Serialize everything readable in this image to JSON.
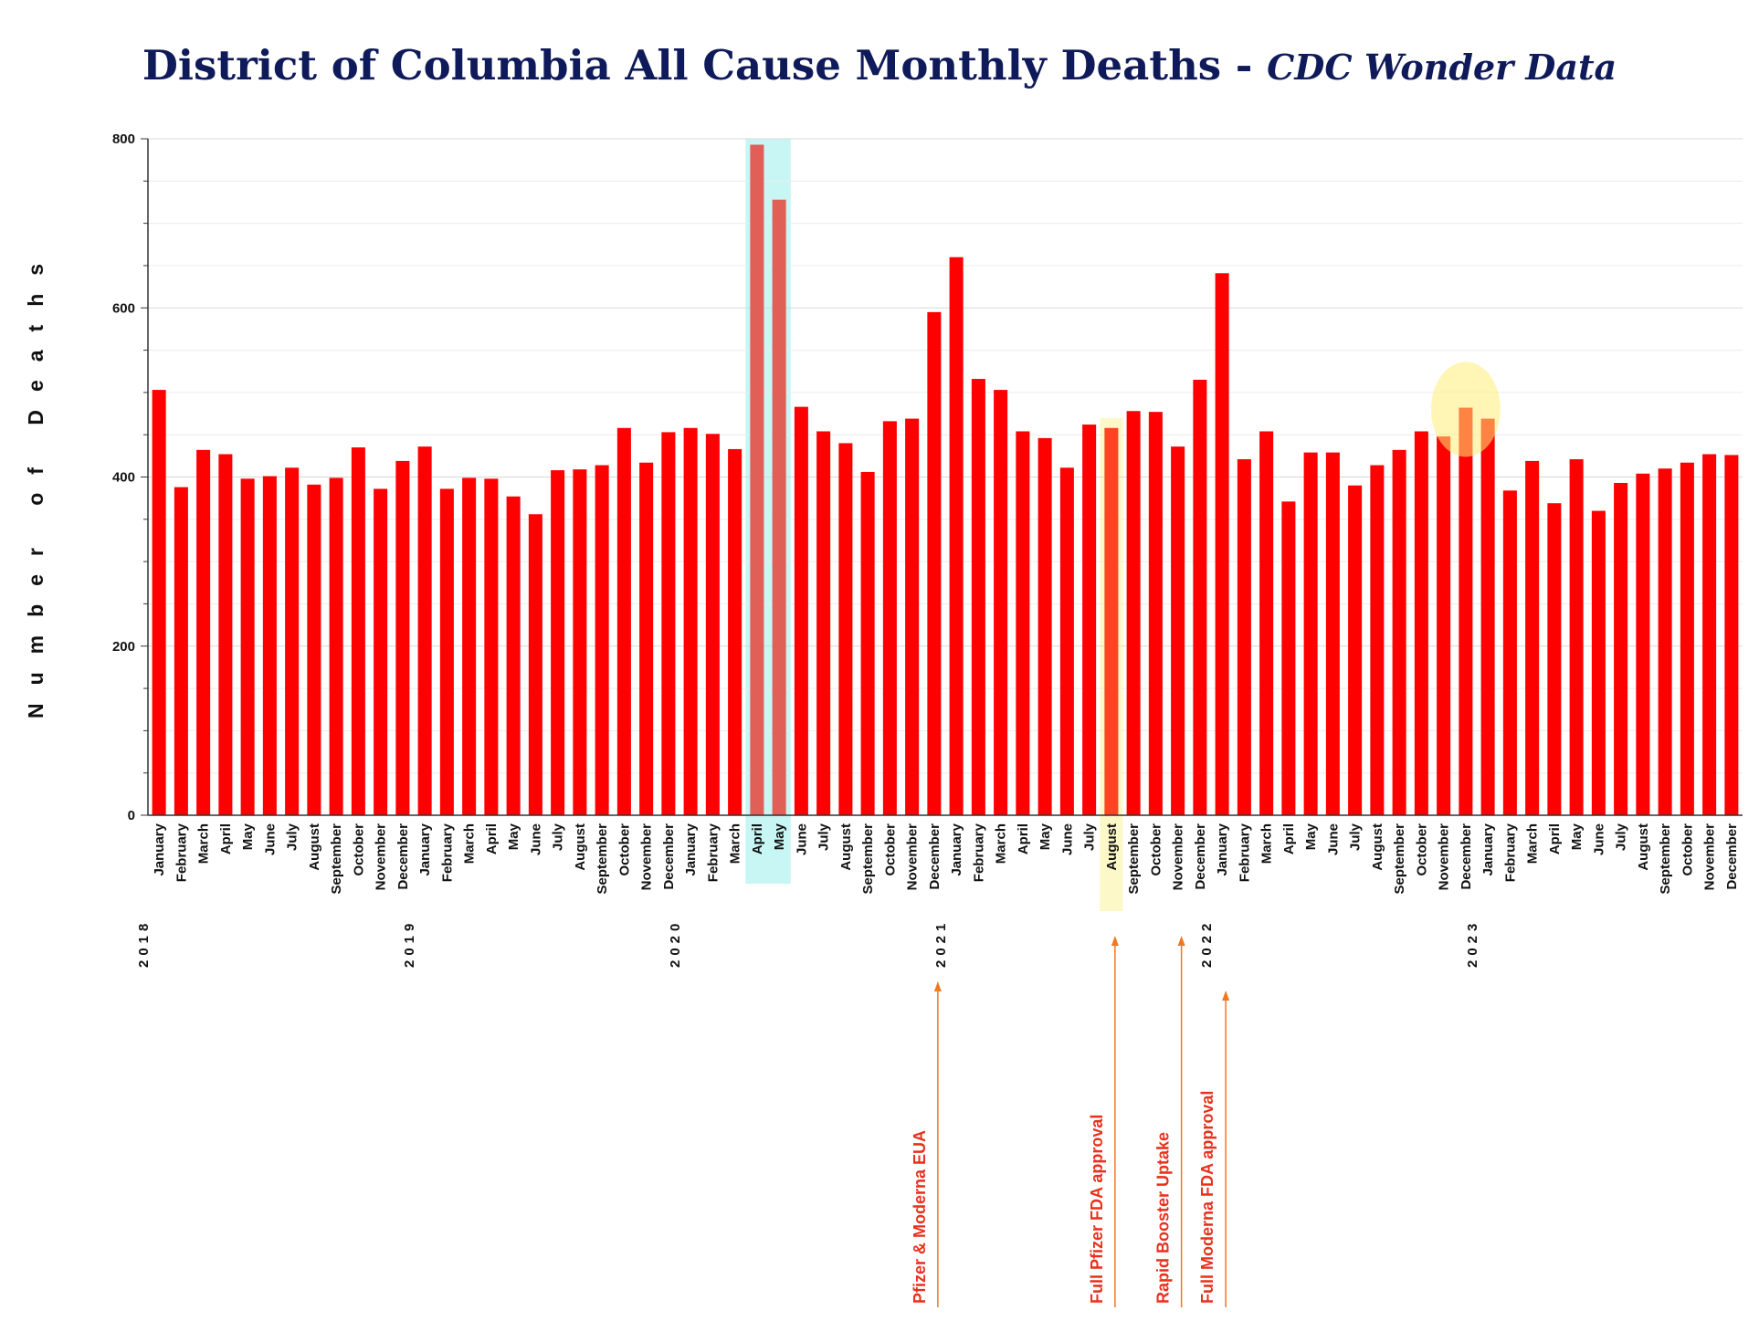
{
  "title": {
    "main": "District of Columbia All Cause Monthly Deaths - ",
    "sub": "CDC Wonder Data"
  },
  "colors": {
    "bar": "#ff0000",
    "bar_highlight": "#e06058",
    "cyan_band": "#c8f6f4",
    "arrow": "#f07820",
    "annotation": "#e8301c",
    "title": "#0f1a5a"
  },
  "chart_data": {
    "type": "bar",
    "title": "District of Columbia All Cause Monthly Deaths - CDC Wonder Data",
    "xlabel": "",
    "ylabel": "Number of Deaths",
    "ylim": [
      0,
      800
    ],
    "yticks": [
      0,
      200,
      400,
      600,
      800
    ],
    "grid": true,
    "years": [
      {
        "label": "2018",
        "start_index": 0
      },
      {
        "label": "2019",
        "start_index": 12
      },
      {
        "label": "2020",
        "start_index": 24
      },
      {
        "label": "2021",
        "start_index": 36
      },
      {
        "label": "2022",
        "start_index": 48
      },
      {
        "label": "2023",
        "start_index": 60
      }
    ],
    "categories": [
      "January",
      "February",
      "March",
      "April",
      "May",
      "June",
      "July",
      "August",
      "September",
      "October",
      "November",
      "December",
      "January",
      "February",
      "March",
      "April",
      "May",
      "June",
      "July",
      "August",
      "September",
      "October",
      "November",
      "December",
      "January",
      "February",
      "March",
      "April",
      "May",
      "June",
      "July",
      "August",
      "September",
      "October",
      "November",
      "December",
      "January",
      "February",
      "March",
      "April",
      "May",
      "June",
      "July",
      "August",
      "September",
      "October",
      "November",
      "December",
      "January",
      "February",
      "March",
      "April",
      "May",
      "June",
      "July",
      "August",
      "September",
      "October",
      "November",
      "December",
      "January",
      "February",
      "March",
      "April",
      "May",
      "June",
      "July",
      "August",
      "September",
      "October",
      "November",
      "December"
    ],
    "values": [
      503,
      388,
      432,
      427,
      398,
      401,
      411,
      391,
      399,
      435,
      386,
      419,
      436,
      386,
      399,
      398,
      377,
      356,
      408,
      409,
      414,
      458,
      417,
      453,
      458,
      451,
      433,
      793,
      728,
      483,
      454,
      440,
      406,
      466,
      469,
      595,
      660,
      516,
      503,
      454,
      446,
      411,
      462,
      458,
      478,
      477,
      436,
      515,
      641,
      421,
      454,
      371,
      429,
      429,
      390,
      414,
      432,
      454,
      448,
      482,
      469,
      384,
      419,
      369,
      421,
      360,
      393,
      404,
      410,
      417,
      427,
      426
    ],
    "highlights": [
      {
        "type": "band",
        "from_index": 27,
        "to_index": 28,
        "color": "cyan"
      },
      {
        "type": "band",
        "from_index": 43,
        "to_index": 43,
        "color": "yellow"
      },
      {
        "type": "circle",
        "index": 59,
        "color": "yellow"
      }
    ],
    "annotations": [
      {
        "text": "Pfizer & Moderna EUA",
        "index": 35
      },
      {
        "text": "Full Pfizer FDA approval",
        "index": 43
      },
      {
        "text": "Rapid Booster Uptake",
        "index": 46
      },
      {
        "text": "Full Moderna FDA approval",
        "index": 48
      }
    ]
  }
}
